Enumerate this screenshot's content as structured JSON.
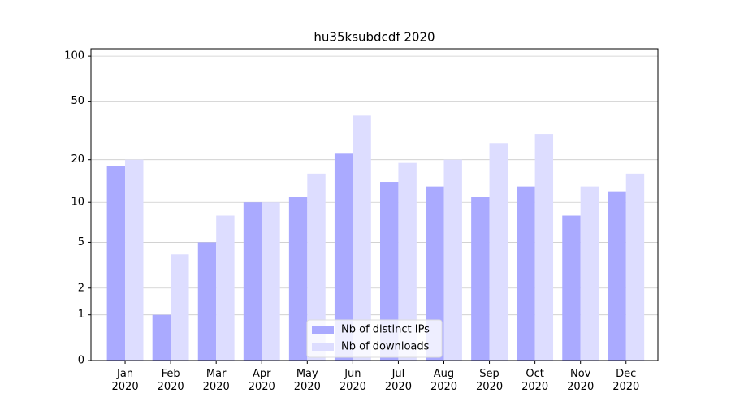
{
  "chart_data": {
    "type": "bar",
    "title": "hu35ksubdcdf 2020",
    "categories": [
      "Jan\n2020",
      "Feb\n2020",
      "Mar\n2020",
      "Apr\n2020",
      "May\n2020",
      "Jun\n2020",
      "Jul\n2020",
      "Aug\n2020",
      "Sep\n2020",
      "Oct\n2020",
      "Nov\n2020",
      "Dec\n2020"
    ],
    "series": [
      {
        "name": "Nb of distinct IPs",
        "color": "#aaaaff",
        "values": [
          18,
          1,
          5,
          10,
          11,
          22,
          14,
          13,
          11,
          13,
          8,
          12
        ]
      },
      {
        "name": "Nb of downloads",
        "color": "#ddddff",
        "values": [
          20,
          4,
          8,
          10,
          16,
          40,
          19,
          20,
          26,
          30,
          13,
          16
        ]
      }
    ],
    "yscale": "log1p",
    "ylim": [
      0,
      112
    ],
    "yticks": [
      0,
      1,
      2,
      5,
      10,
      20,
      50,
      100
    ],
    "grid": true,
    "legend": "lower center"
  }
}
